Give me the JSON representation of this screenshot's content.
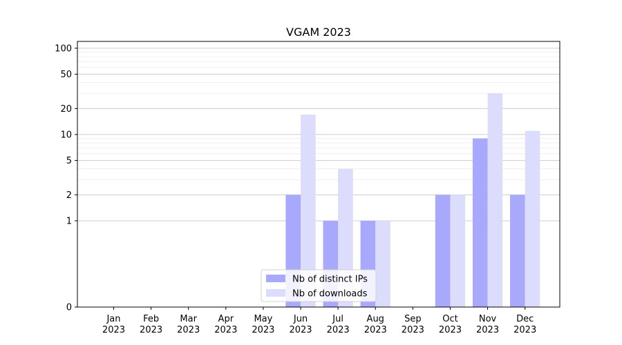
{
  "chart_data": {
    "type": "bar",
    "title": "VGAM 2023",
    "xlabel": "",
    "ylabel": "",
    "y_scale": "symlog",
    "ylim": [
      0,
      120
    ],
    "y_ticks": [
      0,
      1,
      2,
      5,
      10,
      20,
      50,
      100
    ],
    "y_tick_labels": [
      "0",
      "1",
      "2",
      "5",
      "10",
      "20",
      "50",
      "100"
    ],
    "categories": [
      "Jan\n2023",
      "Feb\n2023",
      "Mar\n2023",
      "Apr\n2023",
      "May\n2023",
      "Jun\n2023",
      "Jul\n2023",
      "Aug\n2023",
      "Sep\n2023",
      "Oct\n2023",
      "Nov\n2023",
      "Dec\n2023"
    ],
    "series": [
      {
        "name": "Nb of distinct IPs",
        "color": "#a8a8fc",
        "values": [
          0,
          0,
          0,
          0,
          0,
          2,
          1,
          1,
          0,
          2,
          9,
          2
        ]
      },
      {
        "name": "Nb of downloads",
        "color": "#dcdcfc",
        "values": [
          0,
          0,
          0,
          0,
          0,
          17,
          4,
          1,
          0,
          2,
          30,
          11
        ]
      }
    ],
    "grid": true,
    "legend_position": "lower-center"
  }
}
